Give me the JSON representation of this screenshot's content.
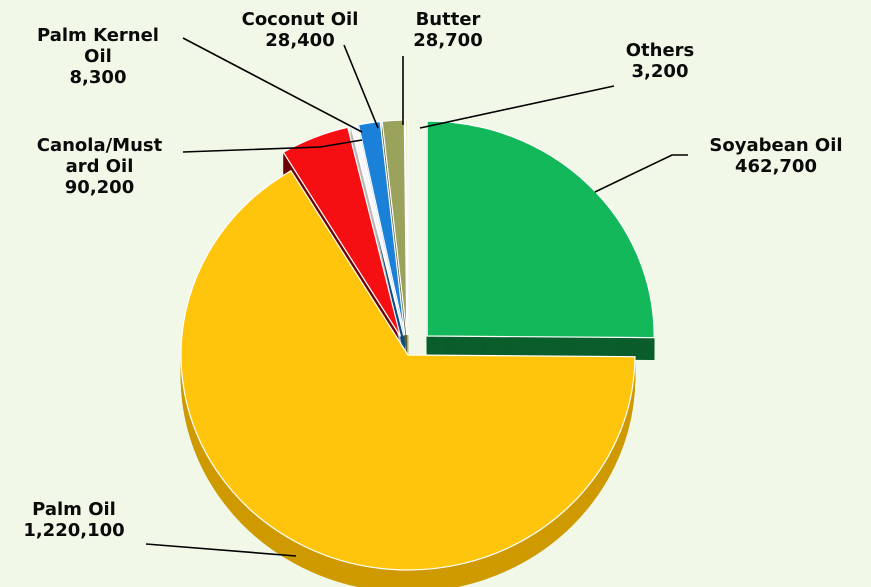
{
  "chart_data": {
    "type": "pie",
    "title": "",
    "slices": [
      {
        "label_lines": [
          "Soyabean Oil"
        ],
        "value_text": "462,700",
        "value": 462700,
        "color": "#12b85a",
        "side_color": "#0b5e2c"
      },
      {
        "label_lines": [
          "Palm Oil"
        ],
        "value_text": "1,220,100",
        "value": 1220100,
        "color": "#ffc50d",
        "side_color": "#cf9a00"
      },
      {
        "label_lines": [
          "Canola/Must",
          "ard Oil"
        ],
        "value_text": "90,200",
        "value": 90200,
        "color": "#f50f12",
        "side_color": "#6d0303"
      },
      {
        "label_lines": [
          "Palm Kernel",
          "Oil"
        ],
        "value_text": "8,300",
        "value": 8300,
        "color": "#f8f8f8",
        "side_color": "#b8b8b8"
      },
      {
        "label_lines": [
          "Coconut Oil"
        ],
        "value_text": "28,400",
        "value": 28400,
        "color": "#1a80d8",
        "side_color": "#0b4d88"
      },
      {
        "label_lines": [
          "Butter"
        ],
        "value_text": "28,700",
        "value": 28700,
        "color": "#9ba25c",
        "side_color": "#5e6234"
      },
      {
        "label_lines": [
          "Others"
        ],
        "value_text": "3,200",
        "value": 3200,
        "color": "#e2ebb4",
        "side_color": "#aab27a"
      }
    ],
    "legend": "none"
  }
}
